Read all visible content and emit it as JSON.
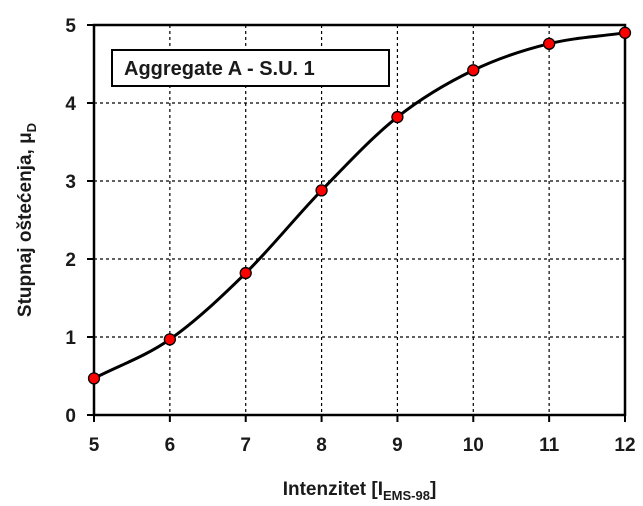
{
  "chart_data": {
    "type": "line",
    "legend_label": "Aggregate A - S.U. 1",
    "xlabel_main": "Intenzitet [I",
    "xlabel_sub": "EMS-98",
    "xlabel_close": "]",
    "ylabel_main": "Stupnaj oštećenja, μ",
    "ylabel_sub": "D",
    "xlim": [
      5,
      12
    ],
    "ylim": [
      0,
      5
    ],
    "x_ticks": [
      "5",
      "6",
      "7",
      "8",
      "9",
      "10",
      "11",
      "12"
    ],
    "y_ticks": [
      "0",
      "1",
      "2",
      "3",
      "4",
      "5"
    ],
    "grid": true,
    "legend_position": "top-left",
    "colors": {
      "points": "#ff0000",
      "curve": "#000000",
      "grid": "#000000"
    },
    "points": [
      {
        "x": 5,
        "y": 0.47
      },
      {
        "x": 6,
        "y": 0.97
      },
      {
        "x": 7,
        "y": 1.82
      },
      {
        "x": 8,
        "y": 2.88
      },
      {
        "x": 9,
        "y": 3.82
      },
      {
        "x": 10,
        "y": 4.42
      },
      {
        "x": 11,
        "y": 4.76
      },
      {
        "x": 12,
        "y": 4.9
      }
    ]
  }
}
